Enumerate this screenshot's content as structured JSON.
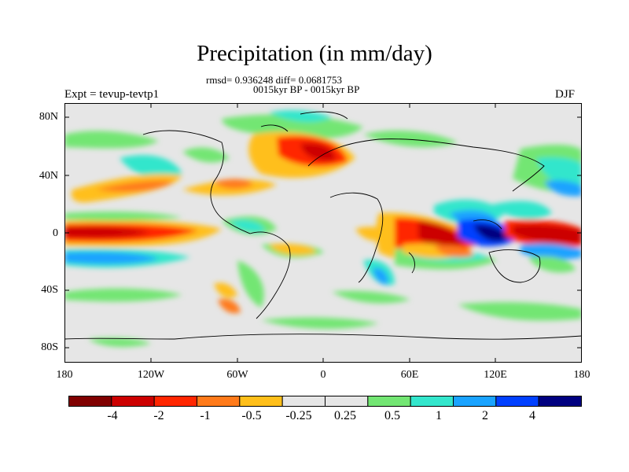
{
  "title": "Precipitation (in mm/day)",
  "stats_line": "rmsd= 0.936248 diff= 0.0681753",
  "period_line": "0015kyr BP - 0015kyr BP",
  "left_label": "Expt = tevup-tevtp1",
  "right_label": "DJF",
  "lat_ticks": [
    "80N",
    "40N",
    "0",
    "40S",
    "80S"
  ],
  "lon_ticks": [
    "180",
    "120W",
    "60W",
    "0",
    "60E",
    "120E",
    "180"
  ],
  "colorbar": {
    "colors": [
      "#800000",
      "#cc0000",
      "#ff2600",
      "#ff7a1a",
      "#ffbf1a",
      "#e6e6e6",
      "#e6e6e6",
      "#73e673",
      "#33e6cc",
      "#1aa3ff",
      "#0040ff",
      "#000080"
    ],
    "labels": [
      "-4",
      "-2",
      "-1",
      "-0.5",
      "-0.25",
      "0.25",
      "0.5",
      "1",
      "2",
      "4"
    ]
  }
}
